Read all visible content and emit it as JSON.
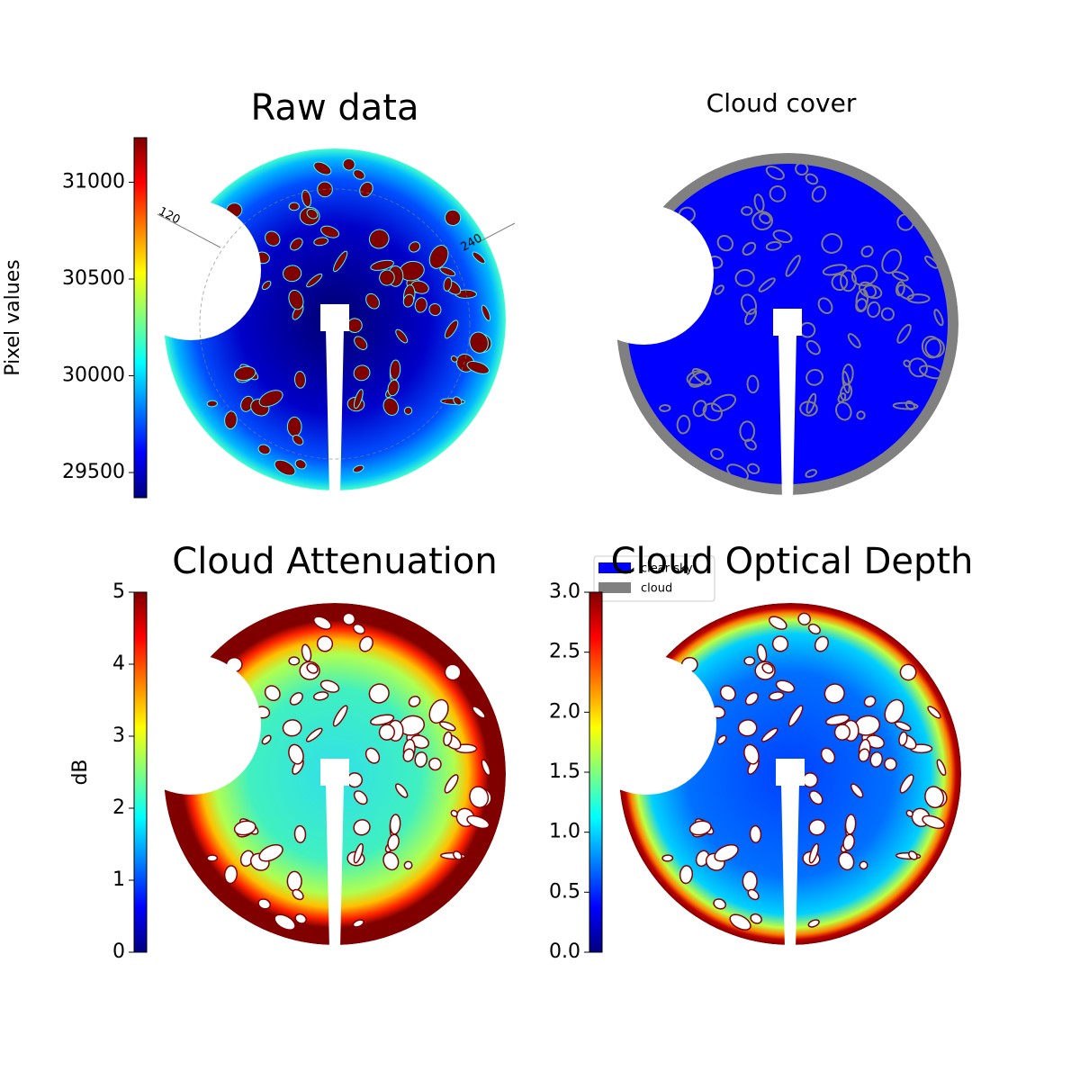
{
  "chart_data": [
    {
      "type": "image",
      "title": "Raw data",
      "colorbar_label": "Pixel values",
      "colormap": "jet",
      "ylim": [
        29370,
        31230
      ],
      "yticks": [
        29500,
        30000,
        30500,
        31000
      ],
      "annotations": [
        "120",
        "240"
      ]
    },
    {
      "type": "image",
      "title": "Cloud cover",
      "series": [
        {
          "name": "clear sky",
          "color": "#0000ff"
        },
        {
          "name": "cloud",
          "color": "#808080"
        }
      ],
      "legend": "upper left"
    },
    {
      "type": "image",
      "title": "Cloud Attenuation",
      "colorbar_label": "dB",
      "colormap": "jet",
      "ylim": [
        0,
        5
      ],
      "yticks": [
        0,
        1,
        2,
        3,
        4,
        5
      ]
    },
    {
      "type": "image",
      "title": "Cloud Optical Depth",
      "colormap": "jet",
      "ylim": [
        0,
        3
      ],
      "yticks": [
        {
          "value": 0,
          "label": "0.0"
        },
        0.5,
        {
          "value": 1,
          "label": "1.0"
        },
        1.5,
        {
          "value": 2,
          "label": "2.0"
        },
        2.5,
        {
          "value": 3,
          "label": "3.0"
        }
      ]
    }
  ]
}
